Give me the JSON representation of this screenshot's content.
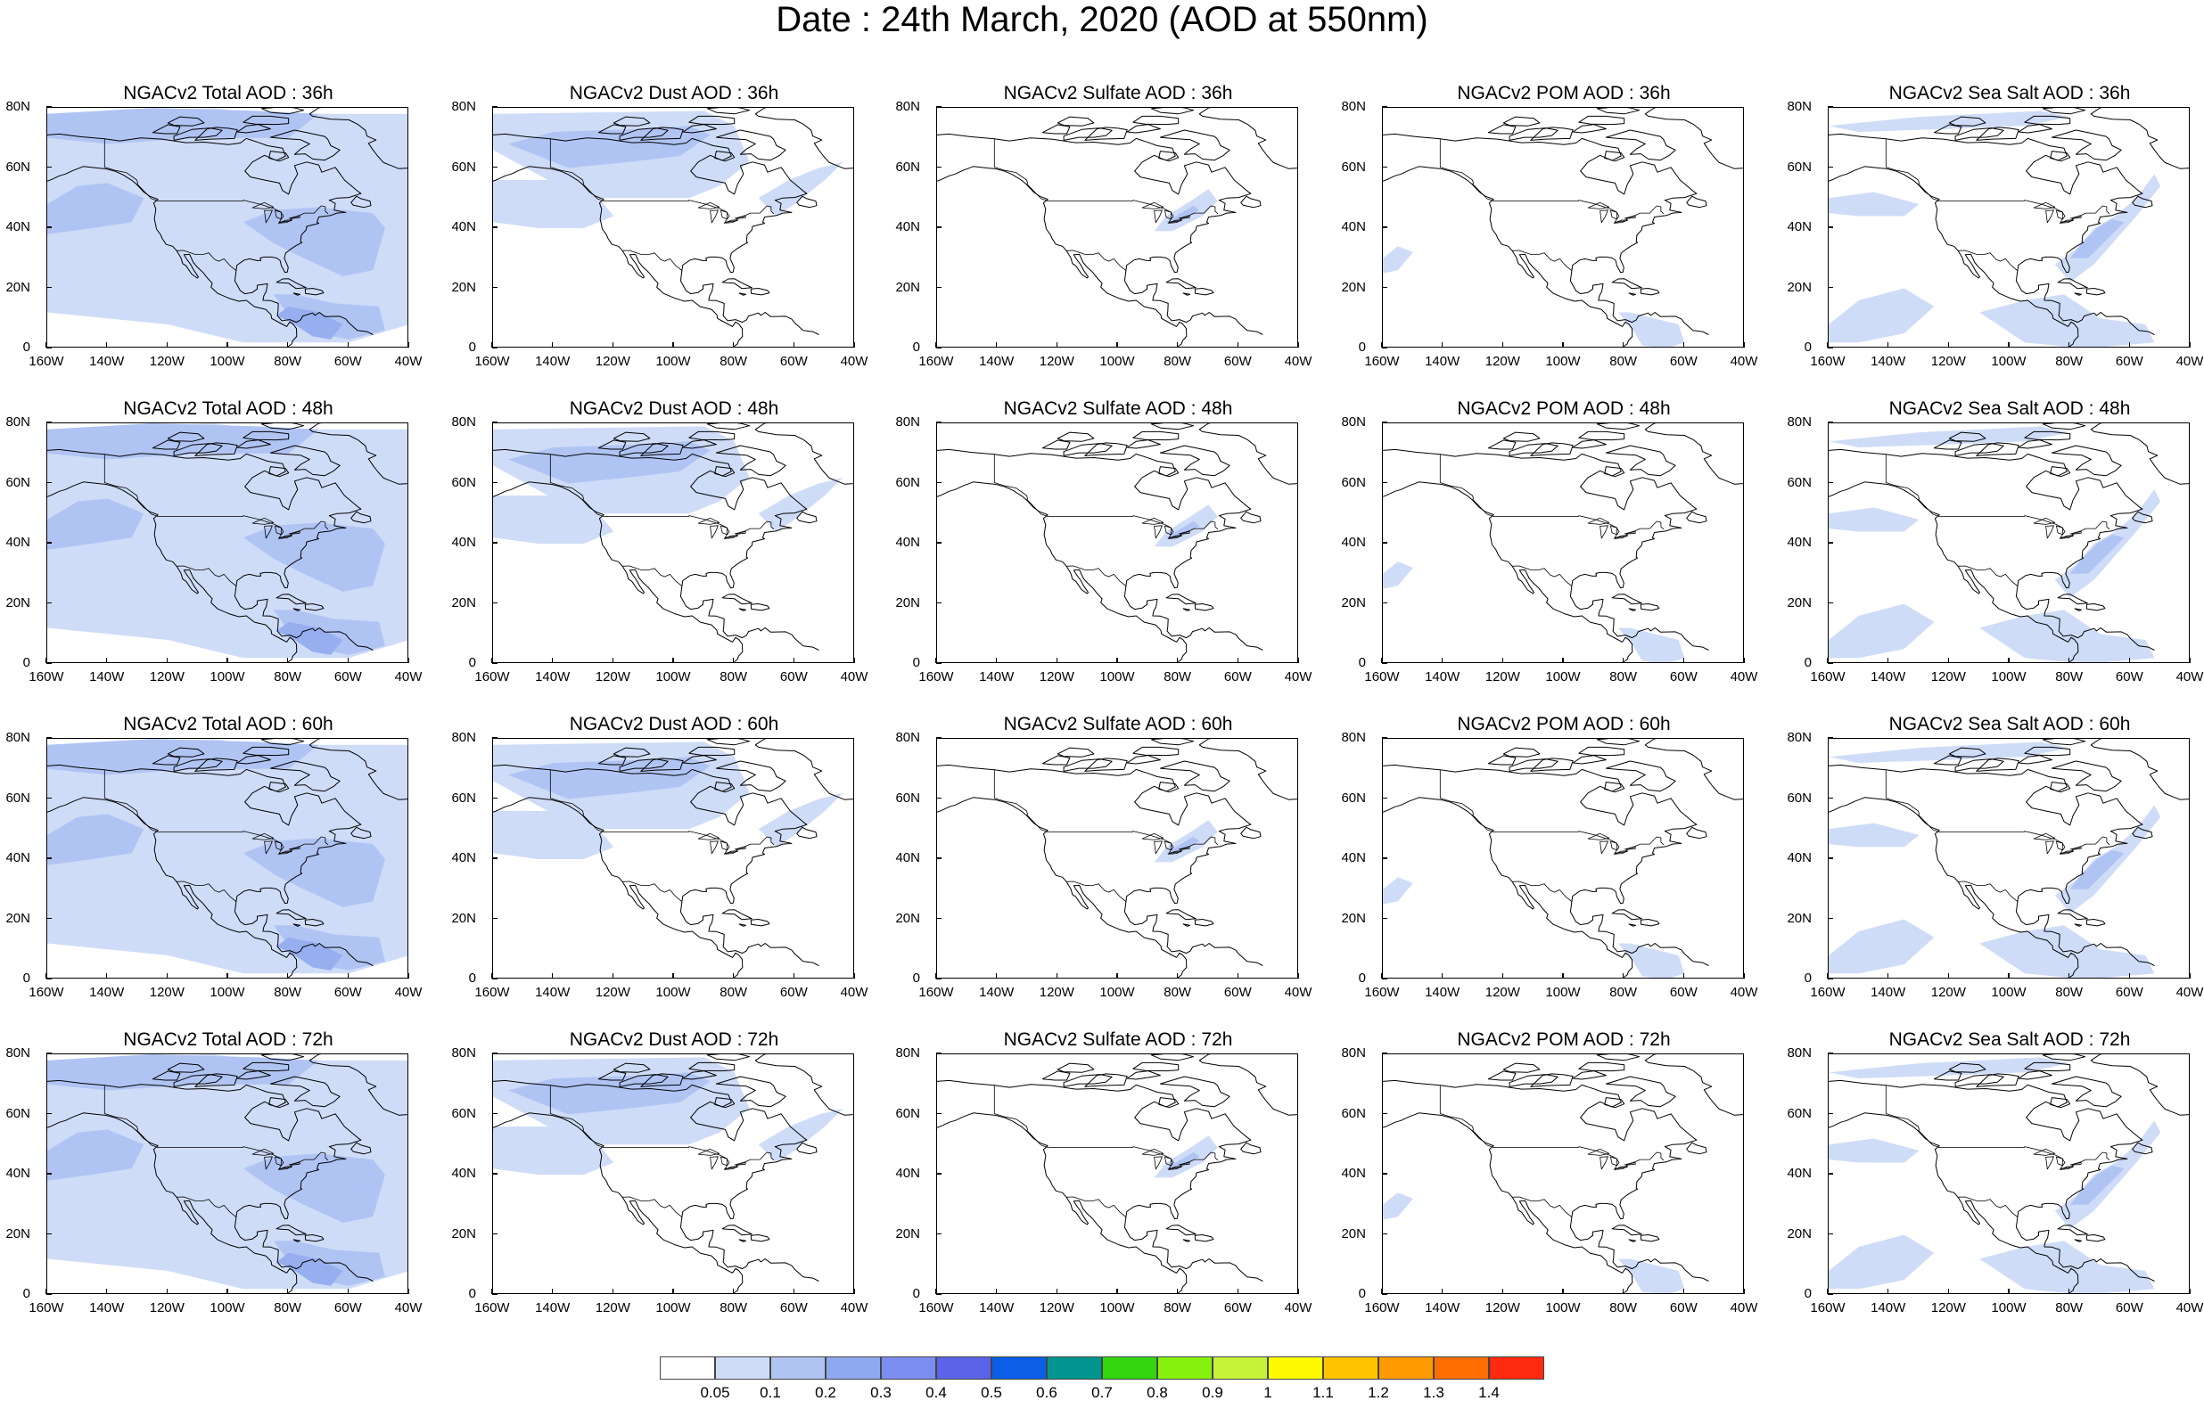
{
  "title": "Date : 24th March, 2020 (AOD at 550nm)",
  "lat_labels": [
    "80N",
    "60N",
    "40N",
    "20N",
    "0"
  ],
  "lon_labels": [
    "160W",
    "140W",
    "120W",
    "100W",
    "80W",
    "60W",
    "40W"
  ],
  "panel_rows": [
    [
      "NGACv2 Total AOD : 36h",
      "NGACv2 Dust AOD : 36h",
      "NGACv2 Sulfate AOD : 36h",
      "NGACv2 POM AOD : 36h",
      "NGACv2 Sea Salt AOD : 36h"
    ],
    [
      "NGACv2 Total AOD : 48h",
      "NGACv2 Dust AOD : 48h",
      "NGACv2 Sulfate AOD : 48h",
      "NGACv2 POM AOD : 48h",
      "NGACv2 Sea Salt AOD : 48h"
    ],
    [
      "NGACv2 Total AOD : 60h",
      "NGACv2 Dust AOD : 60h",
      "NGACv2 Sulfate AOD : 60h",
      "NGACv2 POM AOD : 60h",
      "NGACv2 Sea Salt AOD : 60h"
    ],
    [
      "NGACv2 Total AOD : 72h",
      "NGACv2 Dust AOD : 72h",
      "NGACv2 Sulfate AOD : 72h",
      "NGACv2 POM AOD : 72h",
      "NGACv2 Sea Salt  AOD : 72h"
    ]
  ],
  "colorbar": {
    "labels": [
      "0.05",
      "0.1",
      "0.2",
      "0.3",
      "0.4",
      "0.5",
      "0.6",
      "0.7",
      "0.8",
      "0.9",
      "1",
      "1.1",
      "1.2",
      "1.3",
      "1.4"
    ],
    "colors": [
      "#ffffff",
      "#cfdcf8",
      "#b0c4f4",
      "#8fa9f0",
      "#7b8ef0",
      "#5c63e8",
      "#0a5fe6",
      "#00968f",
      "#33d60e",
      "#86f20e",
      "#c6f23a",
      "#fffa00",
      "#ffc400",
      "#ff9a00",
      "#ff6e00",
      "#ff2a10"
    ]
  }
}
